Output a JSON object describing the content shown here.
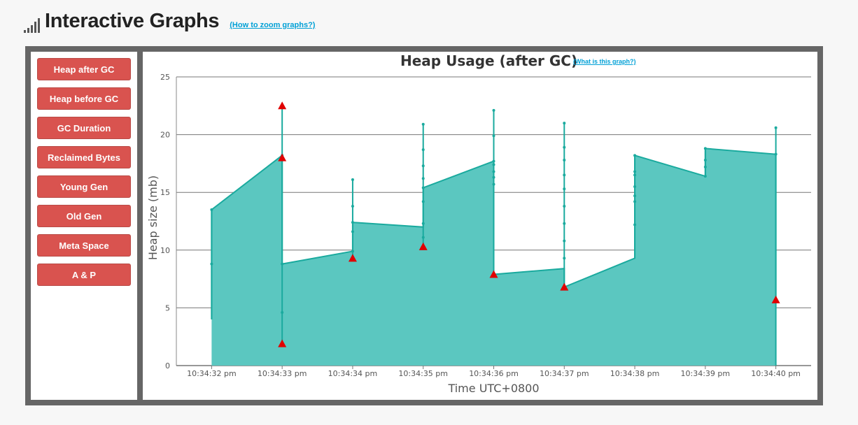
{
  "header": {
    "icon": "signal-bars-icon",
    "title": "Interactive Graphs",
    "zoom_link": "(How to zoom graphs?)"
  },
  "sidebar": {
    "buttons": [
      "Heap after GC",
      "Heap before GC",
      "GC Duration",
      "Reclaimed Bytes",
      "Young Gen",
      "Old Gen",
      "Meta Space",
      "A & P"
    ]
  },
  "chart": {
    "title": "Heap Usage (after GC)",
    "help_link": "(What is this graph?)"
  },
  "colors": {
    "button": "#d9534f",
    "area_fill": "#5bc7c0",
    "area_line": "#1aaa9e",
    "marker": "#e00000"
  },
  "chart_data": {
    "type": "area",
    "title": "Heap Usage (after GC)",
    "xlabel": "Time UTC+0800",
    "ylabel": "Heap size (mb)",
    "ylim": [
      0,
      25
    ],
    "yticks": [
      0,
      5,
      10,
      15,
      20,
      25
    ],
    "xticks": [
      "10:34:32 pm",
      "10:34:33 pm",
      "10:34:34 pm",
      "10:34:35 pm",
      "10:34:36 pm",
      "10:34:37 pm",
      "10:34:38 pm",
      "10:34:39 pm",
      "10:34:40 pm"
    ],
    "xlim_seconds": [
      31.5,
      40.5
    ],
    "grid": "horizontal",
    "series": [
      {
        "values": [
          {
            "x": 32,
            "y": 4.0
          },
          {
            "x": 32,
            "y": 13.5
          },
          {
            "x": 33,
            "y": 18.2
          },
          {
            "x": 33,
            "y": 8.8
          },
          {
            "x": 34,
            "y": 9.9
          },
          {
            "x": 34,
            "y": 12.4
          },
          {
            "x": 35,
            "y": 12.0
          },
          {
            "x": 35,
            "y": 15.4
          },
          {
            "x": 36,
            "y": 17.7
          },
          {
            "x": 36,
            "y": 7.9
          },
          {
            "x": 37,
            "y": 8.4
          },
          {
            "x": 37,
            "y": 6.8
          },
          {
            "x": 38,
            "y": 9.3
          },
          {
            "x": 38,
            "y": 18.2
          },
          {
            "x": 39,
            "y": 16.4
          },
          {
            "x": 39,
            "y": 18.8
          },
          {
            "x": 40,
            "y": 18.3
          },
          {
            "x": 40,
            "y": 0
          }
        ]
      }
    ],
    "spikes": [
      {
        "x": 32,
        "y_min": 4.0,
        "y_max": 13.5,
        "dots": [
          8.8,
          13.5
        ]
      },
      {
        "x": 33,
        "y_min": 1.9,
        "y_max": 22.5,
        "dots": [
          4.6,
          8.8,
          18.2
        ]
      },
      {
        "x": 34,
        "y_min": 9.3,
        "y_max": 16.1,
        "dots": [
          9.9,
          11.6,
          12.4,
          13.8,
          16.1
        ]
      },
      {
        "x": 35,
        "y_min": 10.3,
        "y_max": 20.9,
        "dots": [
          11.1,
          12.3,
          14.2,
          15.4,
          16.2,
          17.3,
          18.7,
          20.9
        ]
      },
      {
        "x": 36,
        "y_min": 7.9,
        "y_max": 22.1,
        "dots": [
          15.7,
          16.3,
          16.8,
          17.4,
          17.7,
          19.9,
          22.1
        ]
      },
      {
        "x": 37,
        "y_min": 6.8,
        "y_max": 21.0,
        "dots": [
          9.3,
          10.8,
          12.3,
          13.8,
          15.3,
          16.5,
          17.8,
          18.9,
          21.0
        ]
      },
      {
        "x": 38,
        "y_min": 9.3,
        "y_max": 18.2,
        "dots": [
          12.2,
          14.2,
          14.7,
          15.5,
          16.5,
          16.8,
          18.2
        ]
      },
      {
        "x": 39,
        "y_min": 16.4,
        "y_max": 18.8,
        "dots": [
          16.4,
          17.2,
          17.8,
          18.8
        ]
      },
      {
        "x": 40,
        "y_min": 5.7,
        "y_max": 20.6,
        "dots": [
          18.3,
          20.6
        ]
      }
    ],
    "markers": [
      {
        "x": 33,
        "y": 22.5
      },
      {
        "x": 33,
        "y": 18.0
      },
      {
        "x": 33,
        "y": 1.9
      },
      {
        "x": 34,
        "y": 9.3
      },
      {
        "x": 35,
        "y": 10.3
      },
      {
        "x": 36,
        "y": 7.9
      },
      {
        "x": 37,
        "y": 6.8
      },
      {
        "x": 40,
        "y": 5.7
      }
    ]
  }
}
